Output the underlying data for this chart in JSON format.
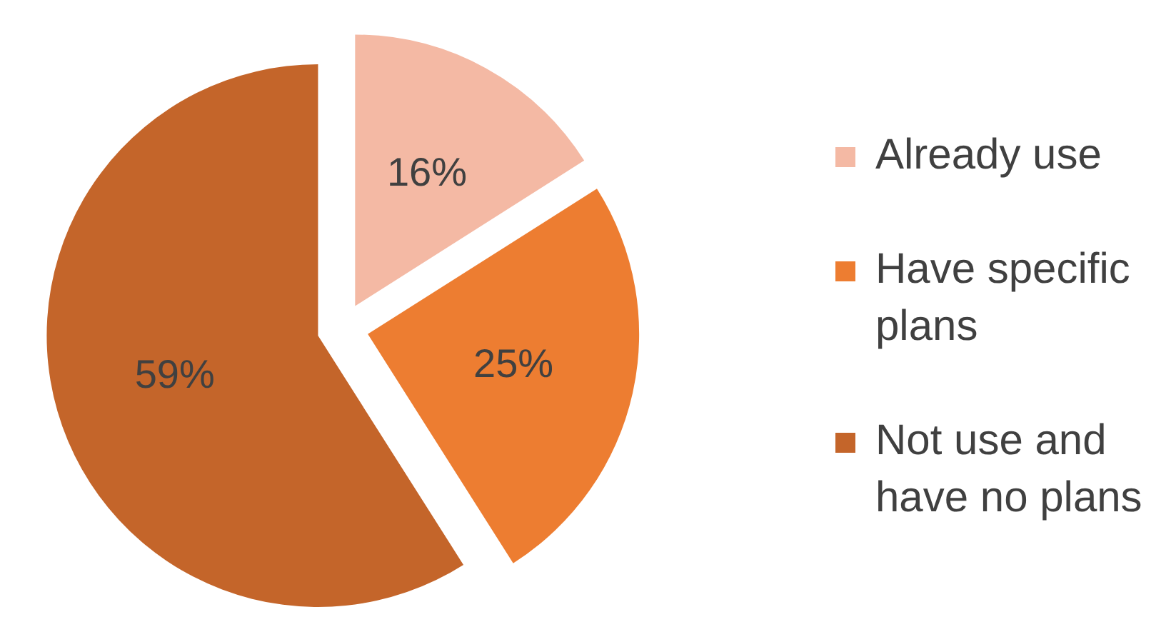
{
  "chart_data": {
    "type": "pie",
    "categories": [
      "Already use",
      "Have specific plans",
      "Not use and have no plans"
    ],
    "values": [
      16,
      25,
      59
    ],
    "colors": [
      "#f4b9a4",
      "#ed7d31",
      "#c4652a"
    ],
    "value_labels": [
      "16%",
      "25%",
      "59%"
    ],
    "legend": "right"
  }
}
